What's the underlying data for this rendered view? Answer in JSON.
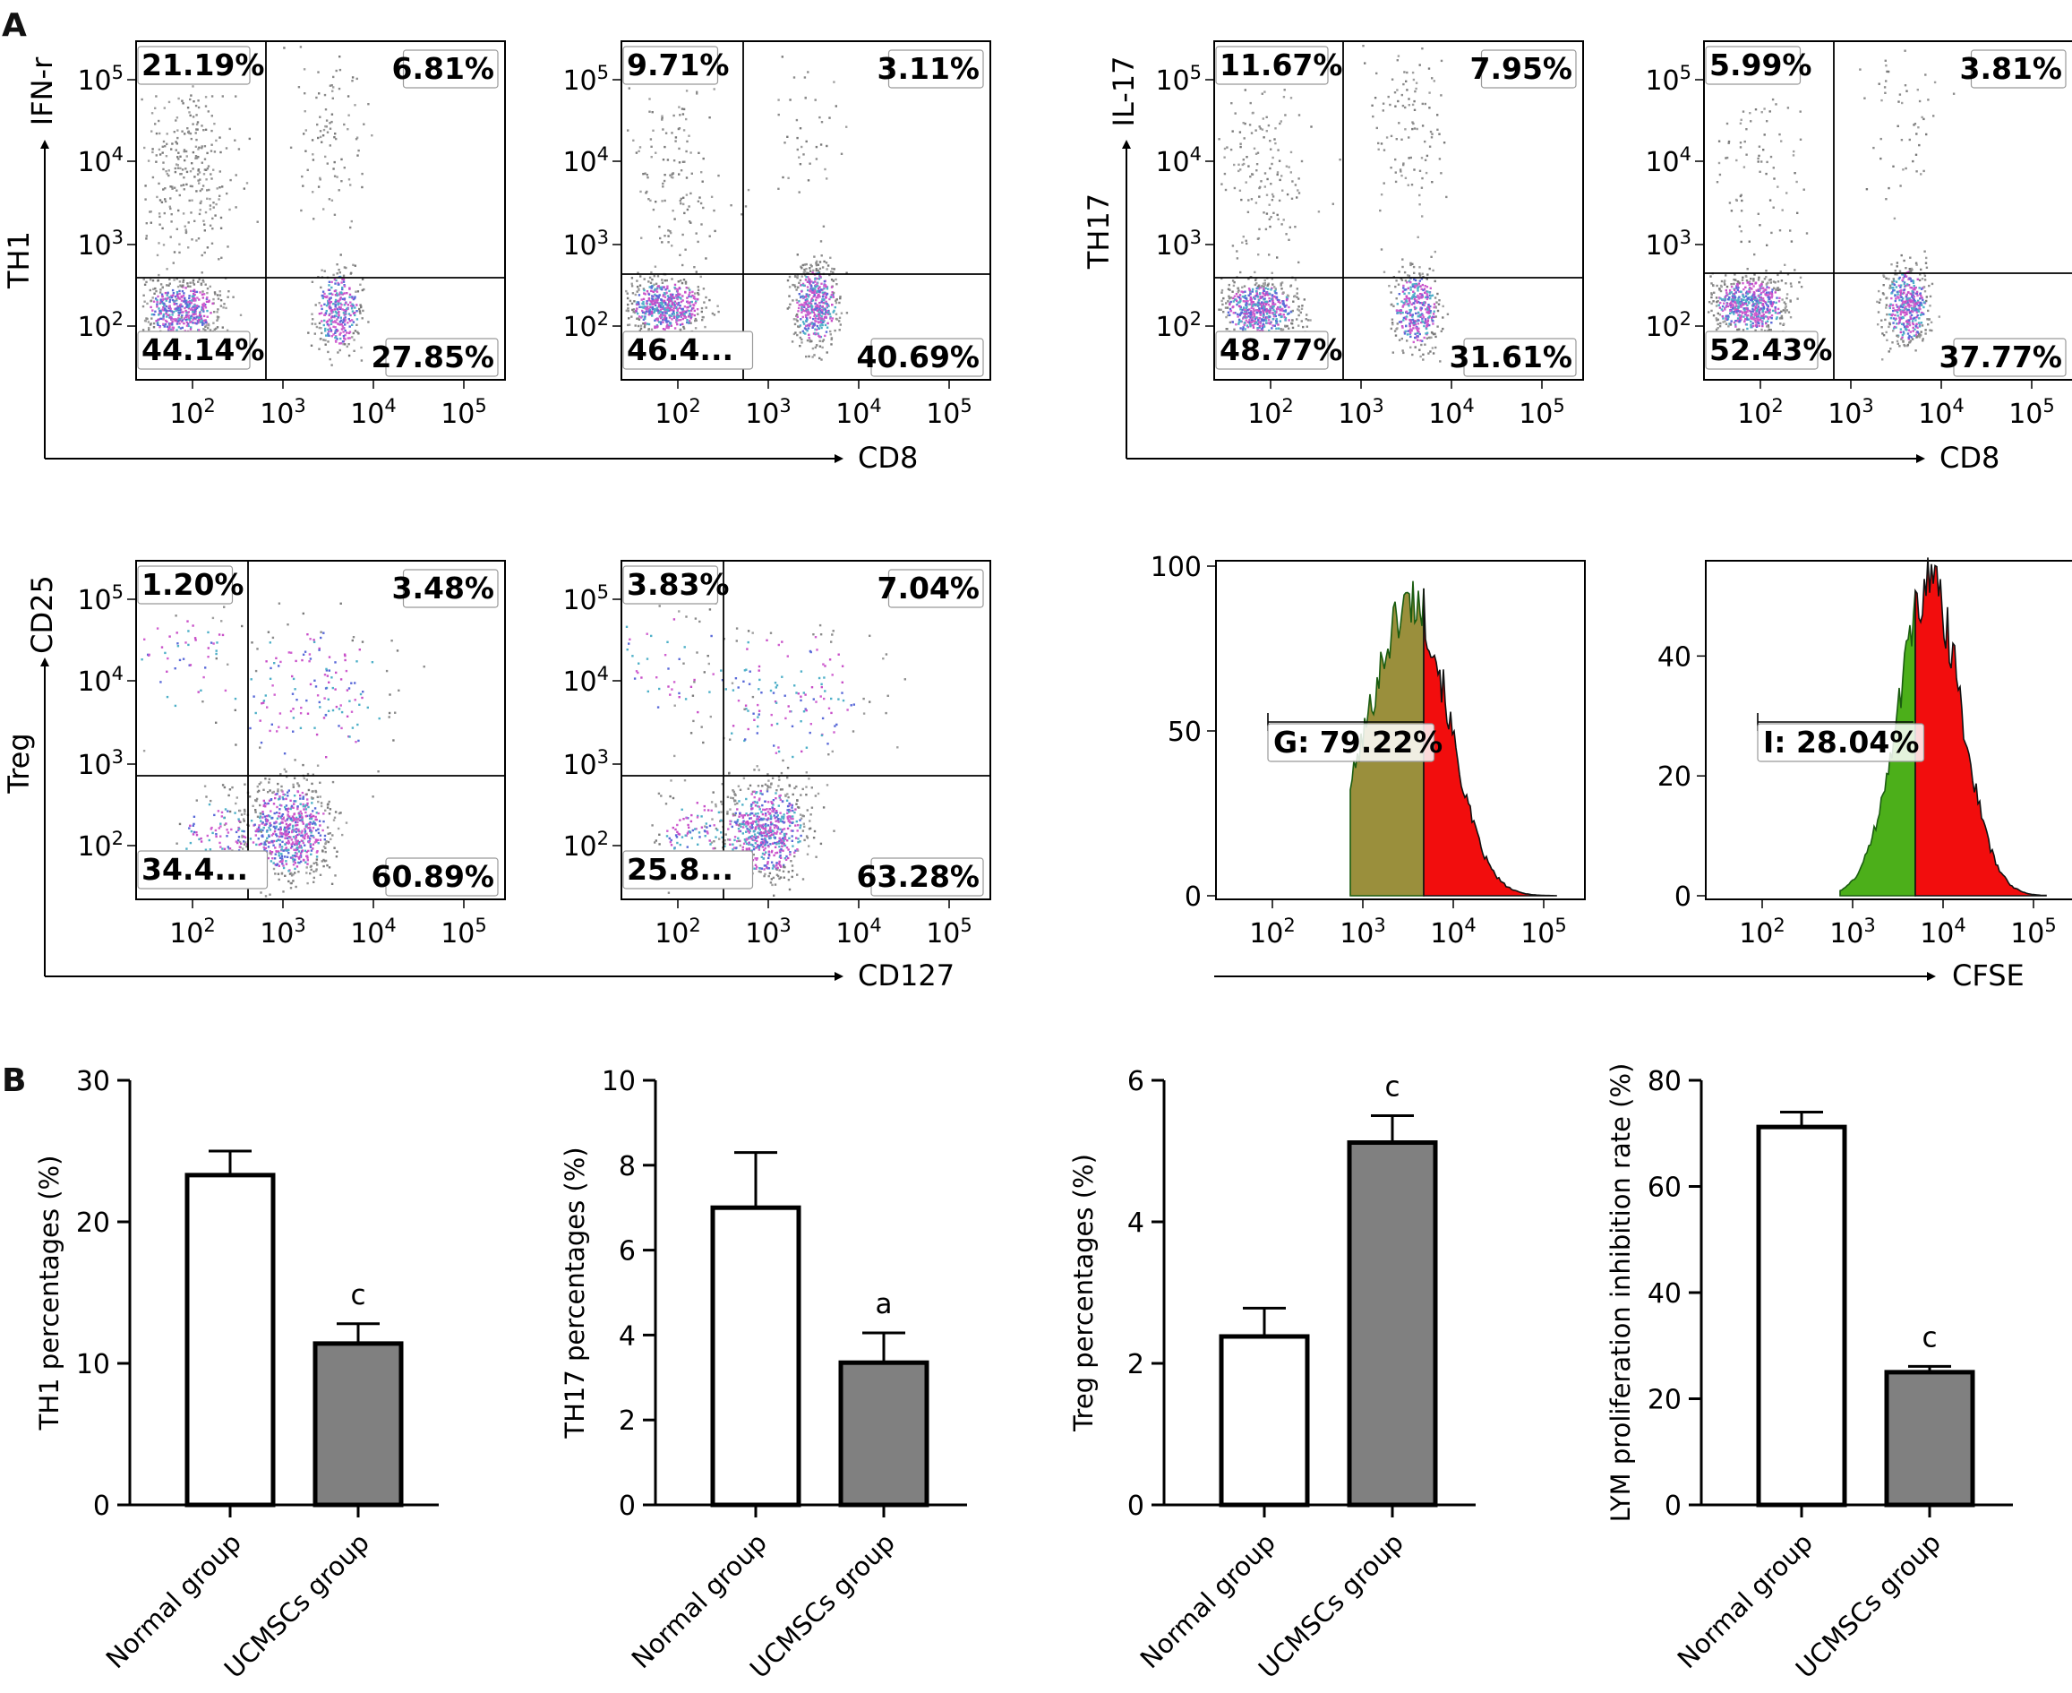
{
  "figure": {
    "panel_a_label": "A",
    "panel_b_label": "B",
    "flow_tick_labels": [
      "10",
      "10",
      "10",
      "10"
    ],
    "flow_tick_exponents": [
      "2",
      "3",
      "4",
      "5"
    ]
  },
  "panel_a": {
    "th1": {
      "row_label": "TH1",
      "y_marker": "IFN-r",
      "x_marker": "CD8",
      "plots": [
        {
          "ul": "21.19%",
          "ur": "6.81%",
          "ll": "44.14%",
          "lr": "27.85%"
        },
        {
          "ul": "9.71%",
          "ur": "3.11%",
          "ll": "46.4...",
          "lr": "40.69%"
        }
      ]
    },
    "th17": {
      "row_label": "TH17",
      "y_marker": "IL-17",
      "x_marker": "CD8",
      "plots": [
        {
          "ul": "11.67%",
          "ur": "7.95%",
          "ll": "48.77%",
          "lr": "31.61%"
        },
        {
          "ul": "5.99%",
          "ur": "3.81%",
          "ll": "52.43%",
          "lr": "37.77%"
        }
      ]
    },
    "treg": {
      "row_label": "Treg",
      "y_marker": "CD25",
      "x_marker": "CD127",
      "plots": [
        {
          "ul": "1.20%",
          "ur": "3.48%",
          "ll": "34.4...",
          "lr": "60.89%"
        },
        {
          "ul": "3.83%",
          "ur": "7.04%",
          "ll": "25.8...",
          "lr": "63.28%"
        }
      ]
    },
    "cfse": {
      "x_marker": "CFSE",
      "histograms": [
        {
          "gate": "G: 79.22%",
          "yticks": [
            "0",
            "50",
            "100"
          ],
          "ymax": 100
        },
        {
          "gate": "I: 28.04%",
          "yticks": [
            "0",
            "20",
            "40"
          ],
          "ymax": 55
        }
      ]
    }
  },
  "chart_data": [
    {
      "type": "bar",
      "categories": [
        "Normal group",
        "UCMSCs group"
      ],
      "values": [
        23.3,
        11.4
      ],
      "errors": [
        1.7,
        1.4
      ],
      "significance": [
        "",
        "c"
      ],
      "ylabel": "TH1 percentages (%)",
      "ylim": [
        0,
        30
      ],
      "yticks": [
        "0",
        "10",
        "20",
        "30"
      ],
      "colors": [
        "#ffffff",
        "#808080"
      ]
    },
    {
      "type": "bar",
      "categories": [
        "Normal group",
        "UCMSCs group"
      ],
      "values": [
        7.0,
        3.35
      ],
      "errors": [
        1.3,
        0.7
      ],
      "significance": [
        "",
        "a"
      ],
      "ylabel": "TH17 percentages (%)",
      "ylim": [
        0,
        10
      ],
      "yticks": [
        "0",
        "2",
        "4",
        "6",
        "8",
        "10"
      ],
      "colors": [
        "#ffffff",
        "#808080"
      ]
    },
    {
      "type": "bar",
      "categories": [
        "Normal group",
        "UCMSCs group"
      ],
      "values": [
        2.38,
        5.12
      ],
      "errors": [
        0.4,
        0.38
      ],
      "significance": [
        "",
        "c"
      ],
      "ylabel": "Treg percentages (%)",
      "ylim": [
        0,
        6
      ],
      "yticks": [
        "0",
        "2",
        "4",
        "6"
      ],
      "colors": [
        "#ffffff",
        "#808080"
      ]
    },
    {
      "type": "bar",
      "categories": [
        "Normal group",
        "UCMSCs group"
      ],
      "values": [
        71.2,
        25.0
      ],
      "errors": [
        2.8,
        1.1
      ],
      "significance": [
        "",
        "c"
      ],
      "ylabel": "LYM proliferation inhibition rate (%)",
      "ylim": [
        0,
        80
      ],
      "yticks": [
        "0",
        "20",
        "40",
        "60",
        "80"
      ],
      "colors": [
        "#ffffff",
        "#808080"
      ]
    }
  ]
}
